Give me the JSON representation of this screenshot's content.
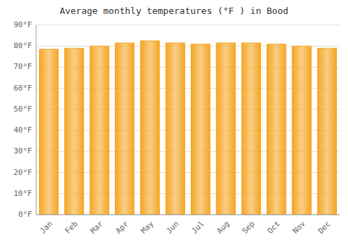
{
  "chart_data": {
    "type": "bar",
    "title": "Average monthly temperatures (°F ) in Bood",
    "categories": [
      "Jan",
      "Feb",
      "Mar",
      "Apr",
      "May",
      "Jun",
      "Jul",
      "Aug",
      "Sep",
      "Oct",
      "Nov",
      "Dec"
    ],
    "values": [
      78.5,
      79.0,
      80.0,
      81.5,
      82.5,
      81.5,
      81.0,
      81.5,
      81.5,
      81.0,
      80.0,
      79.0
    ],
    "color": "#F5A623",
    "ylim": [
      0,
      90
    ],
    "yticks": [
      {
        "value": 0,
        "label": "0°F"
      },
      {
        "value": 10,
        "label": "10°F"
      },
      {
        "value": 20,
        "label": "20°F"
      },
      {
        "value": 30,
        "label": "30°F"
      },
      {
        "value": 40,
        "label": "40°F"
      },
      {
        "value": 50,
        "label": "50°F"
      },
      {
        "value": 60,
        "label": "60°F"
      },
      {
        "value": 70,
        "label": "70°F"
      },
      {
        "value": 80,
        "label": "80°F"
      },
      {
        "value": 90,
        "label": "90°F"
      }
    ],
    "grid": true
  }
}
